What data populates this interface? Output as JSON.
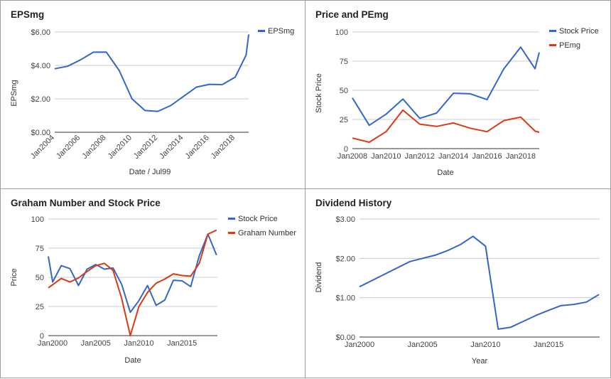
{
  "chart_data": [
    {
      "type": "line",
      "title": "EPSmg",
      "xlabel": "Date / Jul99",
      "ylabel": "EPSmg",
      "ylim": [
        0,
        6
      ],
      "y_ticks": [
        "$0.00",
        "$2.00",
        "$4.00",
        "$6.00"
      ],
      "x_ticks": [
        "Jan2004",
        "Jan2006",
        "Jan2008",
        "Jan2010",
        "Jan2012",
        "Jan2014",
        "Jan2016",
        "Jan2018"
      ],
      "legend": "right",
      "series": [
        {
          "name": "EPSmg",
          "color": "#3366cc",
          "x": [
            2004,
            2005,
            2006,
            2007,
            2008,
            2009,
            2010,
            2011,
            2012,
            2013,
            2014,
            2015,
            2016,
            2017,
            2018,
            2018.85,
            2019.05
          ],
          "y": [
            3.8,
            3.95,
            4.33,
            4.79,
            4.8,
            3.7,
            2.0,
            1.3,
            1.25,
            1.6,
            2.15,
            2.7,
            2.87,
            2.85,
            3.3,
            4.62,
            5.85
          ]
        }
      ]
    },
    {
      "type": "line",
      "title": "Price and PEmg",
      "xlabel": "Date",
      "ylabel": "Stock Price",
      "ylim": [
        0,
        100
      ],
      "y_ticks": [
        "0",
        "25",
        "50",
        "75",
        "100"
      ],
      "x_ticks": [
        "Jan2008",
        "Jan2010",
        "Jan2012",
        "Jan2014",
        "Jan2016",
        "Jan2018"
      ],
      "legend": "right",
      "series": [
        {
          "name": "Stock Price",
          "color": "#3366cc",
          "x": [
            2008,
            2009,
            2010,
            2011,
            2012,
            2013,
            2014,
            2015,
            2016,
            2017,
            2018,
            2018.85,
            2019.1
          ],
          "y": [
            43.5,
            20,
            29.5,
            42.5,
            26,
            30.5,
            47.5,
            47,
            42,
            68.5,
            87,
            68.5,
            82.5
          ]
        },
        {
          "name": "PEmg",
          "color": "#dc3912",
          "x": [
            2008,
            2009,
            2010,
            2011,
            2012,
            2013,
            2014,
            2015,
            2016,
            2017,
            2018,
            2018.85,
            2019.1
          ],
          "y": [
            9,
            5.5,
            14.5,
            33,
            21,
            19,
            22,
            17.5,
            14.5,
            24,
            27,
            15,
            14
          ]
        }
      ]
    },
    {
      "type": "line",
      "title": "Graham Number and Stock Price",
      "xlabel": "Date",
      "ylabel": "Price",
      "ylim": [
        0,
        100
      ],
      "y_ticks": [
        "0",
        "25",
        "50",
        "75",
        "100"
      ],
      "x_ticks": [
        "Jan2000",
        "Jan2005",
        "Jan2010",
        "Jan2015"
      ],
      "legend": "right",
      "series": [
        {
          "name": "Stock Price",
          "color": "#3366cc",
          "x": [
            1999.5,
            2000,
            2001,
            2002,
            2003,
            2004,
            2005,
            2006,
            2007,
            2008,
            2009,
            2010,
            2011,
            2012,
            2013,
            2014,
            2015,
            2016,
            2017,
            2018,
            2019
          ],
          "y": [
            68,
            46,
            60,
            57.5,
            43,
            57,
            61,
            57,
            58,
            44,
            20,
            30,
            43,
            26,
            30.5,
            47.5,
            47,
            42,
            68.5,
            87,
            69
          ]
        },
        {
          "name": "Graham Number",
          "color": "#dc3912",
          "x": [
            1999.5,
            2001,
            2002,
            2003,
            2004,
            2005,
            2006,
            2007,
            2008,
            2009,
            2010,
            2011,
            2012,
            2013,
            2014,
            2015,
            2016,
            2017,
            2018,
            2019
          ],
          "y": [
            41,
            49,
            46,
            49.5,
            55,
            60,
            62,
            56,
            32,
            0,
            25,
            37,
            45,
            48.5,
            53,
            51.5,
            51,
            62,
            87,
            90.5
          ]
        }
      ]
    },
    {
      "type": "line",
      "title": "Dividend History",
      "xlabel": "Year",
      "ylabel": "Dividend",
      "ylim": [
        0,
        3
      ],
      "y_ticks": [
        "$0.00",
        "$1.00",
        "$2.00",
        "$3.00"
      ],
      "x_ticks": [
        "Jan2000",
        "Jan2005",
        "Jan2010",
        "Jan2015"
      ],
      "series": [
        {
          "name": "Dividend",
          "color": "#3366cc",
          "x": [
            2000,
            2002,
            2004,
            2006,
            2007,
            2008,
            2009,
            2010,
            2011,
            2012,
            2013,
            2014,
            2015,
            2016,
            2017,
            2018,
            2019
          ],
          "y": [
            1.28,
            1.6,
            1.92,
            2.08,
            2.2,
            2.35,
            2.56,
            2.31,
            0.2,
            0.25,
            0.4,
            0.55,
            0.68,
            0.8,
            0.83,
            0.89,
            1.08
          ]
        }
      ]
    }
  ]
}
